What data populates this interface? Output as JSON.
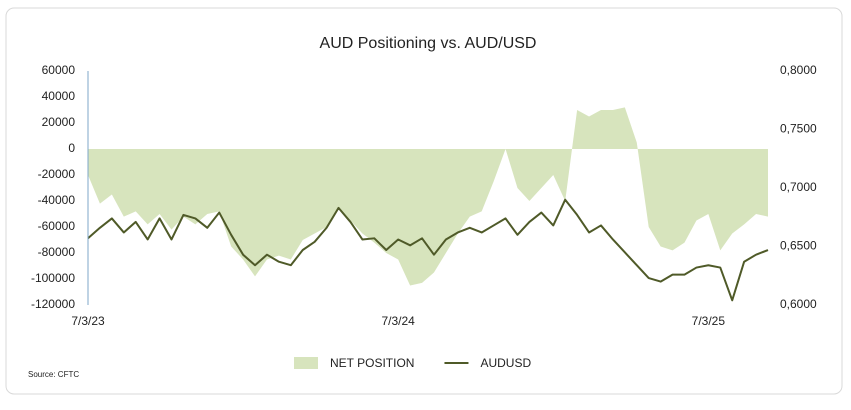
{
  "chart_data": {
    "type": "area-line",
    "title": "AUD Positioning vs. AUD/USD",
    "source": "Source: CFTC",
    "categories": [
      "7/3/23",
      null,
      null,
      null,
      null,
      null,
      null,
      null,
      null,
      null,
      null,
      null,
      null,
      null,
      null,
      null,
      null,
      null,
      null,
      null,
      null,
      null,
      null,
      null,
      null,
      null,
      "7/3/24",
      null,
      null,
      null,
      null,
      null,
      null,
      null,
      null,
      null,
      null,
      null,
      null,
      null,
      null,
      null,
      null,
      null,
      null,
      null,
      null,
      null,
      null,
      null,
      null,
      null,
      "7/3/25",
      null,
      null,
      null,
      null,
      null
    ],
    "series": [
      {
        "name": "NET POSITION",
        "type": "area",
        "color": "#d7e4bd",
        "axis": "y",
        "values": [
          -20000,
          -42000,
          -35000,
          -52000,
          -48000,
          -58000,
          -50000,
          -62000,
          -52000,
          -58000,
          -50000,
          -48000,
          -75000,
          -85000,
          -98000,
          -85000,
          -82000,
          -85000,
          -70000,
          -65000,
          -60000,
          -45000,
          -55000,
          -65000,
          -72000,
          -80000,
          -85000,
          -105000,
          -103000,
          -95000,
          -80000,
          -65000,
          -52000,
          -48000,
          -25000,
          0,
          -30000,
          -40000,
          -30000,
          -20000,
          -40000,
          30000,
          25000,
          30000,
          30000,
          32000,
          5000,
          -60000,
          -75000,
          -78000,
          -72000,
          -55000,
          -50000,
          -78000,
          -65000,
          -58000,
          -50000,
          -52000
        ]
      },
      {
        "name": "AUDUSD",
        "type": "line",
        "color": "#4f5a28",
        "axis": "y2",
        "values": [
          0.657,
          0.666,
          0.674,
          0.662,
          0.671,
          0.656,
          0.674,
          0.656,
          0.677,
          0.674,
          0.666,
          0.679,
          0.66,
          0.643,
          0.634,
          0.643,
          0.637,
          0.634,
          0.647,
          0.654,
          0.666,
          0.683,
          0.671,
          0.656,
          0.657,
          0.647,
          0.656,
          0.651,
          0.657,
          0.643,
          0.656,
          0.662,
          0.666,
          0.662,
          0.668,
          0.674,
          0.66,
          0.671,
          0.679,
          0.668,
          0.69,
          0.677,
          0.662,
          0.668,
          0.656,
          0.645,
          0.634,
          0.623,
          0.62,
          0.626,
          0.626,
          0.632,
          0.634,
          0.632,
          0.604,
          0.637,
          0.643,
          0.647
        ]
      }
    ],
    "ylim": [
      -120000,
      60000
    ],
    "yticks": [
      60000,
      40000,
      20000,
      0,
      -20000,
      -40000,
      -60000,
      -80000,
      -100000,
      -120000
    ],
    "y2lim": [
      0.6,
      0.8
    ],
    "y2ticks": [
      {
        "value": 0.8,
        "label": "0,8000"
      },
      {
        "value": 0.75,
        "label": "0,7500"
      },
      {
        "value": 0.7,
        "label": "0,7000"
      },
      {
        "value": 0.65,
        "label": "0,6500"
      },
      {
        "value": 0.6,
        "label": "0,6000"
      }
    ],
    "legend": "bottom"
  }
}
